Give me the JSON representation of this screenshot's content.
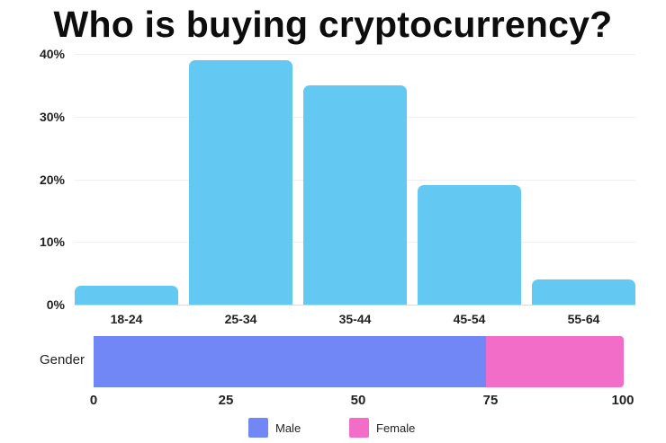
{
  "chart_data": [
    {
      "type": "bar",
      "title": "Who is buying cryptocurrency?",
      "xlabel": "",
      "ylabel": "",
      "categories": [
        "18-24",
        "25-34",
        "35-44",
        "45-54",
        "55-64"
      ],
      "values": [
        3,
        39,
        35,
        19,
        4
      ],
      "unit": "%",
      "ylim": [
        0,
        40
      ],
      "yticks": [
        "0%",
        "10%",
        "20%",
        "30%",
        "40%"
      ],
      "grid": true,
      "color": "#63c9f2"
    },
    {
      "type": "bar",
      "orientation": "horizontal-stacked",
      "categories": [
        "Gender"
      ],
      "series": [
        {
          "name": "Male",
          "values": [
            74
          ],
          "color": "#7087f5"
        },
        {
          "name": "Female",
          "values": [
            26
          ],
          "color": "#f16dc8"
        }
      ],
      "xlim": [
        0,
        100
      ],
      "xticks": [
        "0",
        "25",
        "50",
        "75",
        "100"
      ],
      "legend_position": "bottom"
    }
  ],
  "title": "Who is buying cryptocurrency?",
  "age_chart": {
    "yticks": [
      {
        "label": "40%",
        "value": 40
      },
      {
        "label": "30%",
        "value": 30
      },
      {
        "label": "20%",
        "value": 20
      },
      {
        "label": "10%",
        "value": 10
      },
      {
        "label": "0%",
        "value": 0
      }
    ],
    "bars": [
      {
        "label": "18-24",
        "value": 3
      },
      {
        "label": "25-34",
        "value": 39
      },
      {
        "label": "35-44",
        "value": 35
      },
      {
        "label": "45-54",
        "value": 19
      },
      {
        "label": "55-64",
        "value": 4
      }
    ]
  },
  "gender_chart": {
    "row_label": "Gender",
    "male": {
      "label": "Male",
      "value": 74,
      "color": "#7087f5"
    },
    "female": {
      "label": "Female",
      "value": 26,
      "color": "#f16dc8"
    },
    "xticks": [
      "0",
      "25",
      "50",
      "75",
      "100"
    ]
  }
}
